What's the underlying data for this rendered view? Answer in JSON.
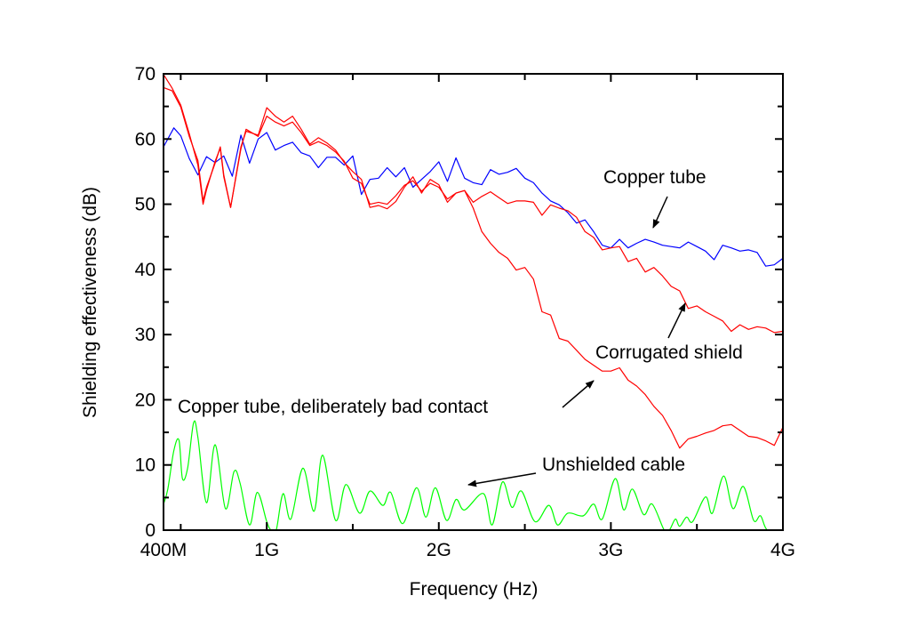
{
  "chart_data": {
    "type": "line",
    "title": "",
    "xlabel": "Frequency (Hz)",
    "ylabel": "Shielding effectiveness (dB)",
    "xlim": [
      0.4,
      4.0
    ],
    "ylim": [
      0,
      70
    ],
    "x_unit": "GHz",
    "x_ticks": [
      {
        "value": 0.4,
        "label": "400M"
      },
      {
        "value": 1.0,
        "label": "1G"
      },
      {
        "value": 2.0,
        "label": "2G"
      },
      {
        "value": 3.0,
        "label": "3G"
      },
      {
        "value": 4.0,
        "label": "4G"
      }
    ],
    "x_minor_ticks": [
      0.5,
      1.5,
      2.5,
      3.5
    ],
    "y_ticks": [
      0,
      10,
      20,
      30,
      40,
      50,
      60,
      70
    ],
    "y_tick_labels": [
      "0",
      "10",
      "20",
      "30",
      "40",
      "50",
      "60",
      "70"
    ],
    "y_minor_ticks": [
      5,
      15,
      25,
      35,
      45,
      55,
      65
    ],
    "grid": false,
    "legend": "none (inline annotations with arrows)",
    "series": [
      {
        "name": "Copper tube",
        "color": "#0000ff",
        "x": [
          0.4,
          0.46,
          0.5,
          0.55,
          0.6,
          0.65,
          0.7,
          0.75,
          0.8,
          0.85,
          0.9,
          0.95,
          1.0,
          1.05,
          1.1,
          1.15,
          1.2,
          1.25,
          1.3,
          1.35,
          1.4,
          1.45,
          1.5,
          1.55,
          1.6,
          1.65,
          1.7,
          1.75,
          1.8,
          1.85,
          1.9,
          1.95,
          2.0,
          2.05,
          2.1,
          2.15,
          2.2,
          2.25,
          2.3,
          2.35,
          2.4,
          2.45,
          2.5,
          2.55,
          2.6,
          2.65,
          2.7,
          2.75,
          2.8,
          2.85,
          2.9,
          2.95,
          3.0,
          3.05,
          3.1,
          3.15,
          3.2,
          3.25,
          3.3,
          3.35,
          3.4,
          3.45,
          3.5,
          3.55,
          3.6,
          3.65,
          3.7,
          3.75,
          3.8,
          3.85,
          3.9,
          3.95,
          4.0
        ],
        "y": [
          58.8,
          61.7,
          60.5,
          57,
          54.5,
          57.3,
          56.4,
          57.4,
          54.3,
          60.6,
          56.3,
          60,
          61,
          58.3,
          59,
          59.5,
          57.9,
          57.4,
          55.6,
          57.2,
          57.2,
          56,
          57.4,
          51.5,
          53.8,
          54,
          55.6,
          54.2,
          55.6,
          52.6,
          53.8,
          55,
          56.5,
          53.5,
          57.1,
          54,
          53.3,
          53,
          55.3,
          54.6,
          54.9,
          55.5,
          54,
          53.3,
          51.7,
          50.5,
          49.9,
          48.7,
          47.1,
          47.6,
          45.8,
          43.7,
          43.3,
          44.6,
          43.3,
          44,
          44.6,
          44.2,
          43.7,
          43.5,
          43.3,
          44.2,
          43.5,
          42.8,
          41.5,
          43.7,
          43.3,
          42.8,
          43,
          42.6,
          40.5,
          40.7,
          41.7
        ]
      },
      {
        "name": "Corrugated shield",
        "color": "#ff0000",
        "x": [
          0.4,
          0.45,
          0.5,
          0.55,
          0.6,
          0.63,
          0.65,
          0.7,
          0.73,
          0.75,
          0.79,
          0.85,
          0.88,
          0.95,
          1.0,
          1.05,
          1.1,
          1.15,
          1.2,
          1.25,
          1.3,
          1.35,
          1.4,
          1.45,
          1.5,
          1.55,
          1.6,
          1.65,
          1.7,
          1.75,
          1.8,
          1.85,
          1.9,
          1.95,
          2.0,
          2.05,
          2.1,
          2.15,
          2.2,
          2.25,
          2.3,
          2.35,
          2.4,
          2.45,
          2.5,
          2.55,
          2.6,
          2.65,
          2.7,
          2.75,
          2.8,
          2.85,
          2.9,
          2.95,
          3.0,
          3.05,
          3.1,
          3.15,
          3.2,
          3.25,
          3.3,
          3.35,
          3.4,
          3.45,
          3.5,
          3.55,
          3.6,
          3.65,
          3.7,
          3.75,
          3.8,
          3.85,
          3.9,
          3.95,
          4.0
        ],
        "y": [
          67.9,
          67.4,
          64.9,
          60.4,
          56.7,
          50.5,
          52.6,
          56.3,
          58.8,
          54.5,
          49.5,
          58.5,
          61.5,
          60.4,
          63.5,
          62.6,
          62,
          62.6,
          61,
          59,
          59.6,
          59,
          58,
          56.6,
          54,
          53.2,
          50,
          50.3,
          50,
          51.3,
          52.9,
          53.6,
          52,
          53.2,
          52.6,
          50.8,
          51.7,
          52.1,
          50.3,
          51.2,
          51.9,
          51,
          50.1,
          50.5,
          50.5,
          50.3,
          48.3,
          49.9,
          49.4,
          49,
          48,
          45.8,
          44.9,
          43,
          43.3,
          43.5,
          41.2,
          41.7,
          39.6,
          40.3,
          39,
          37.4,
          36.7,
          34,
          34.4,
          33.5,
          32.8,
          32.1,
          30.5,
          31.5,
          30.8,
          31.2,
          31,
          30.3,
          30.5
        ]
      },
      {
        "name": "Copper tube, deliberately bad contact",
        "color": "#ff0000",
        "x": [
          0.4,
          0.45,
          0.5,
          0.55,
          0.6,
          0.63,
          0.65,
          0.7,
          0.73,
          0.75,
          0.79,
          0.85,
          0.88,
          0.95,
          1.0,
          1.05,
          1.1,
          1.15,
          1.2,
          1.25,
          1.3,
          1.35,
          1.4,
          1.45,
          1.5,
          1.55,
          1.6,
          1.65,
          1.7,
          1.75,
          1.8,
          1.85,
          1.9,
          1.95,
          2.0,
          2.05,
          2.1,
          2.15,
          2.2,
          2.25,
          2.3,
          2.35,
          2.4,
          2.45,
          2.5,
          2.55,
          2.6,
          2.65,
          2.7,
          2.75,
          2.8,
          2.85,
          2.9,
          2.95,
          3.0,
          3.05,
          3.1,
          3.15,
          3.2,
          3.25,
          3.3,
          3.35,
          3.4,
          3.45,
          3.5,
          3.55,
          3.6,
          3.65,
          3.7,
          3.75,
          3.8,
          3.85,
          3.9,
          3.95,
          4.0
        ],
        "y": [
          69.9,
          67.8,
          65.2,
          60.8,
          56,
          50,
          52.2,
          56.6,
          58.6,
          54.2,
          49.5,
          58.8,
          61.2,
          60.6,
          64.8,
          63.5,
          62.6,
          63.5,
          61.5,
          59.2,
          60.2,
          59.4,
          58.3,
          56.4,
          55,
          53.8,
          49.5,
          49.8,
          49.3,
          50.4,
          52.6,
          54.2,
          51.7,
          53.8,
          53,
          50.3,
          51.7,
          52.1,
          49.4,
          45.8,
          44,
          42.6,
          41.7,
          39.9,
          40.3,
          38.5,
          33.5,
          33,
          29.4,
          29,
          27.6,
          26.2,
          25.3,
          24.4,
          24.4,
          24.9,
          23,
          22.1,
          20.8,
          19,
          17.6,
          15.3,
          12.6,
          14,
          14.4,
          14.9,
          15.3,
          16,
          16.2,
          15.3,
          14.4,
          14.2,
          13.7,
          13,
          15.8
        ]
      },
      {
        "name": "Unshielded cable",
        "color": "#00ff00",
        "x": [
          0.4,
          0.425,
          0.46,
          0.49,
          0.51,
          0.54,
          0.575,
          0.6,
          0.65,
          0.7,
          0.76,
          0.81,
          0.845,
          0.9,
          0.945,
          1.0,
          1.025,
          1.055,
          1.095,
          1.14,
          1.21,
          1.275,
          1.325,
          1.4,
          1.46,
          1.54,
          1.6,
          1.675,
          1.72,
          1.79,
          1.87,
          1.925,
          1.98,
          2.045,
          2.1,
          2.15,
          2.26,
          2.31,
          2.37,
          2.425,
          2.48,
          2.56,
          2.64,
          2.69,
          2.75,
          2.84,
          2.9,
          2.95,
          3.025,
          3.075,
          3.125,
          3.19,
          3.24,
          3.31,
          3.34,
          3.375,
          3.4,
          3.44,
          3.475,
          3.55,
          3.59,
          3.655,
          3.71,
          3.77,
          3.83,
          3.87,
          3.91,
          4.0
        ],
        "y": [
          4,
          6.3,
          12.2,
          13.8,
          7.9,
          9.5,
          16.5,
          14.2,
          4.2,
          13.1,
          3.3,
          9,
          7.2,
          0.8,
          5.8,
          1.3,
          0,
          0,
          5.6,
          1.7,
          9.5,
          2.9,
          11.5,
          1.5,
          7,
          2.6,
          6,
          3.8,
          5.8,
          1,
          6.5,
          2,
          6.5,
          1.5,
          4.7,
          3.1,
          5.6,
          0.8,
          7.4,
          3.5,
          6,
          1.3,
          3.8,
          0.8,
          2.6,
          2.2,
          4,
          1.7,
          7.9,
          3.1,
          6.3,
          2.4,
          4,
          0,
          0,
          1.7,
          0.6,
          2,
          1.3,
          5.1,
          2.6,
          8.3,
          3.3,
          6.7,
          1.5,
          2.2,
          0,
          0
        ]
      }
    ],
    "annotations": [
      {
        "text": "Copper tube",
        "target_series": "Copper tube"
      },
      {
        "text": "Corrugated shield",
        "target_series": "Corrugated shield"
      },
      {
        "text": "Copper tube, deliberately bad contact",
        "target_series": "Copper tube, deliberately bad contact"
      },
      {
        "text": "Unshielded cable",
        "target_series": "Unshielded cable"
      }
    ]
  }
}
